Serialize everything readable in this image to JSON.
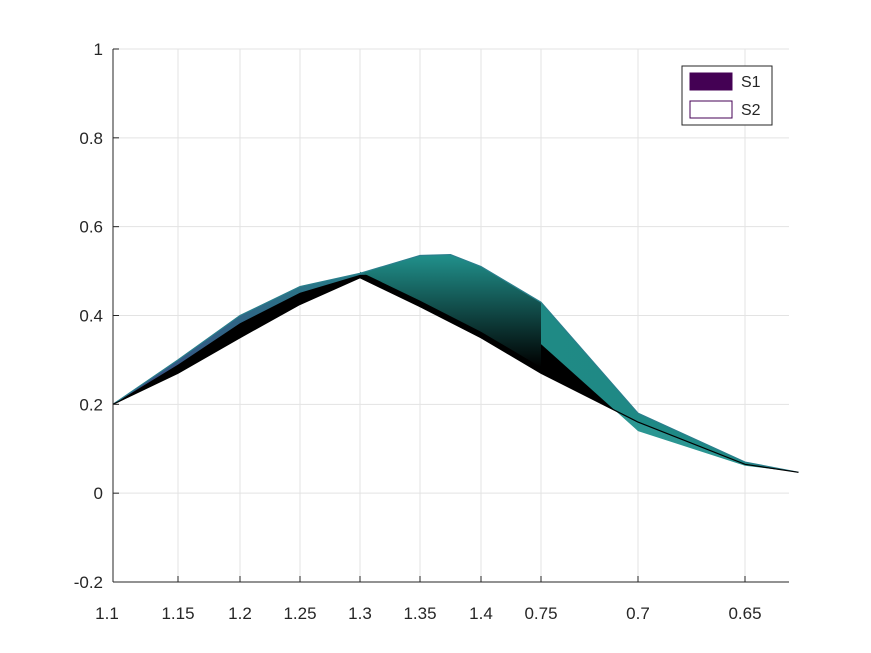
{
  "chart_data": {
    "type": "surface",
    "title": "",
    "xlabel": "",
    "ylabel": "",
    "ylim": [
      -0.2,
      1
    ],
    "yticks": [
      "-0.2",
      "0",
      "0.2",
      "0.4",
      "0.6",
      "0.8",
      "1"
    ],
    "xticks": [
      "1.1",
      "1.15",
      "1.2",
      "1.25",
      "1.3",
      "1.35",
      "1.4",
      "0.75",
      "0.7",
      "0.65"
    ],
    "grid": true,
    "legend": {
      "placement": "top-right",
      "entries": [
        {
          "name": "S1",
          "color": "#440154"
        },
        {
          "name": "S2",
          "color": "#ffffff"
        }
      ]
    },
    "colors": {
      "surface_low": "#3b4f8a",
      "surface_high": "#21918c",
      "edge": "#000000"
    },
    "series": [
      {
        "name": "S1",
        "points": [
          {
            "x": 1.1,
            "y": 0.2
          },
          {
            "x": 1.15,
            "y": 0.3
          },
          {
            "x": 1.2,
            "y": 0.4
          },
          {
            "x": 1.25,
            "y": 0.465
          },
          {
            "x": 1.3,
            "y": 0.495
          },
          {
            "x": 1.35,
            "y": 0.535
          },
          {
            "x": 1.375,
            "y": 0.537
          },
          {
            "x": 1.4,
            "y": 0.51
          },
          {
            "x": 0.75,
            "y": 0.43
          },
          {
            "x": 0.7,
            "y": 0.18
          },
          {
            "x": 0.65,
            "y": 0.07
          },
          {
            "x": 0.625,
            "y": 0.047
          }
        ]
      },
      {
        "name": "S2",
        "points": [
          {
            "x": 1.1,
            "y": 0.2
          },
          {
            "x": 1.15,
            "y": 0.27
          },
          {
            "x": 1.2,
            "y": 0.35
          },
          {
            "x": 1.25,
            "y": 0.425
          },
          {
            "x": 1.3,
            "y": 0.485
          },
          {
            "x": 1.35,
            "y": 0.42
          },
          {
            "x": 1.4,
            "y": 0.35
          },
          {
            "x": 0.75,
            "y": 0.27
          },
          {
            "x": 0.7,
            "y": 0.16
          },
          {
            "x": 0.65,
            "y": 0.065
          },
          {
            "x": 0.625,
            "y": 0.047
          }
        ]
      }
    ]
  }
}
